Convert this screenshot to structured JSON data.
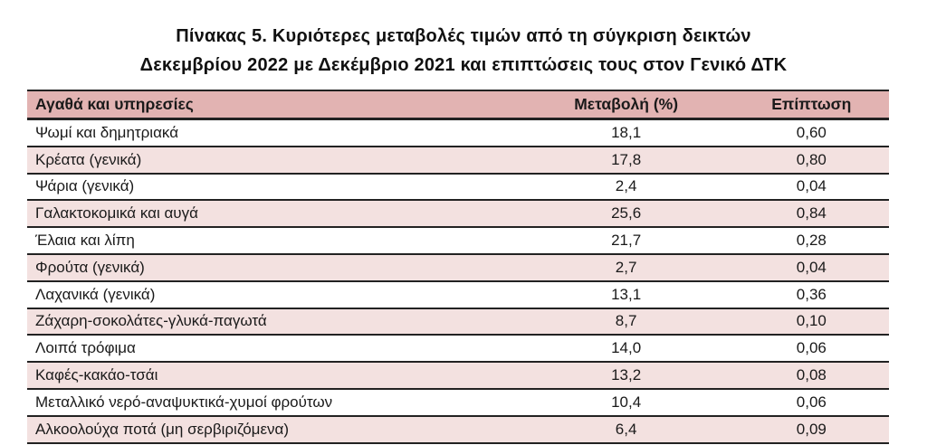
{
  "title": {
    "line1": "Πίνακας  5. Κυριότερες μεταβολές τιμών από τη σύγκριση δεικτών",
    "line2": "Δεκεμβρίου 2022 με Δεκέμβριο 2021 και επιπτώσεις τους στον Γενικό ΔΤΚ"
  },
  "colors": {
    "header_bg": "#e2b3b2",
    "row_alt_bg": "#f3e1e0",
    "border": "#222222"
  },
  "chart_data": {
    "type": "table",
    "columns": [
      "Αγαθά και υπηρεσίες",
      "Μεταβολή (%)",
      "Επίπτωση"
    ],
    "rows": [
      [
        "Ψωμί και δημητριακά",
        "18,1",
        "0,60"
      ],
      [
        "Κρέατα (γενικά)",
        "17,8",
        "0,80"
      ],
      [
        "Ψάρια (γενικά)",
        "2,4",
        "0,04"
      ],
      [
        "Γαλακτοκομικά και αυγά",
        "25,6",
        "0,84"
      ],
      [
        "Έλαια και λίπη",
        "21,7",
        "0,28"
      ],
      [
        "Φρούτα (γενικά)",
        "2,7",
        "0,04"
      ],
      [
        "Λαχανικά (γενικά)",
        "13,1",
        "0,36"
      ],
      [
        "Ζάχαρη-σοκολάτες-γλυκά-παγωτά",
        "8,7",
        "0,10"
      ],
      [
        "Λοιπά τρόφιμα",
        "14,0",
        "0,06"
      ],
      [
        "Καφές-κακάο-τσάι",
        "13,2",
        "0,08"
      ],
      [
        "Μεταλλικό νερό-αναψυκτικά-χυμοί φρούτων",
        "10,4",
        "0,06"
      ],
      [
        "Αλκοολούχα ποτά (μη σερβιριζόμενα)",
        "6,4",
        "0,09"
      ]
    ]
  }
}
